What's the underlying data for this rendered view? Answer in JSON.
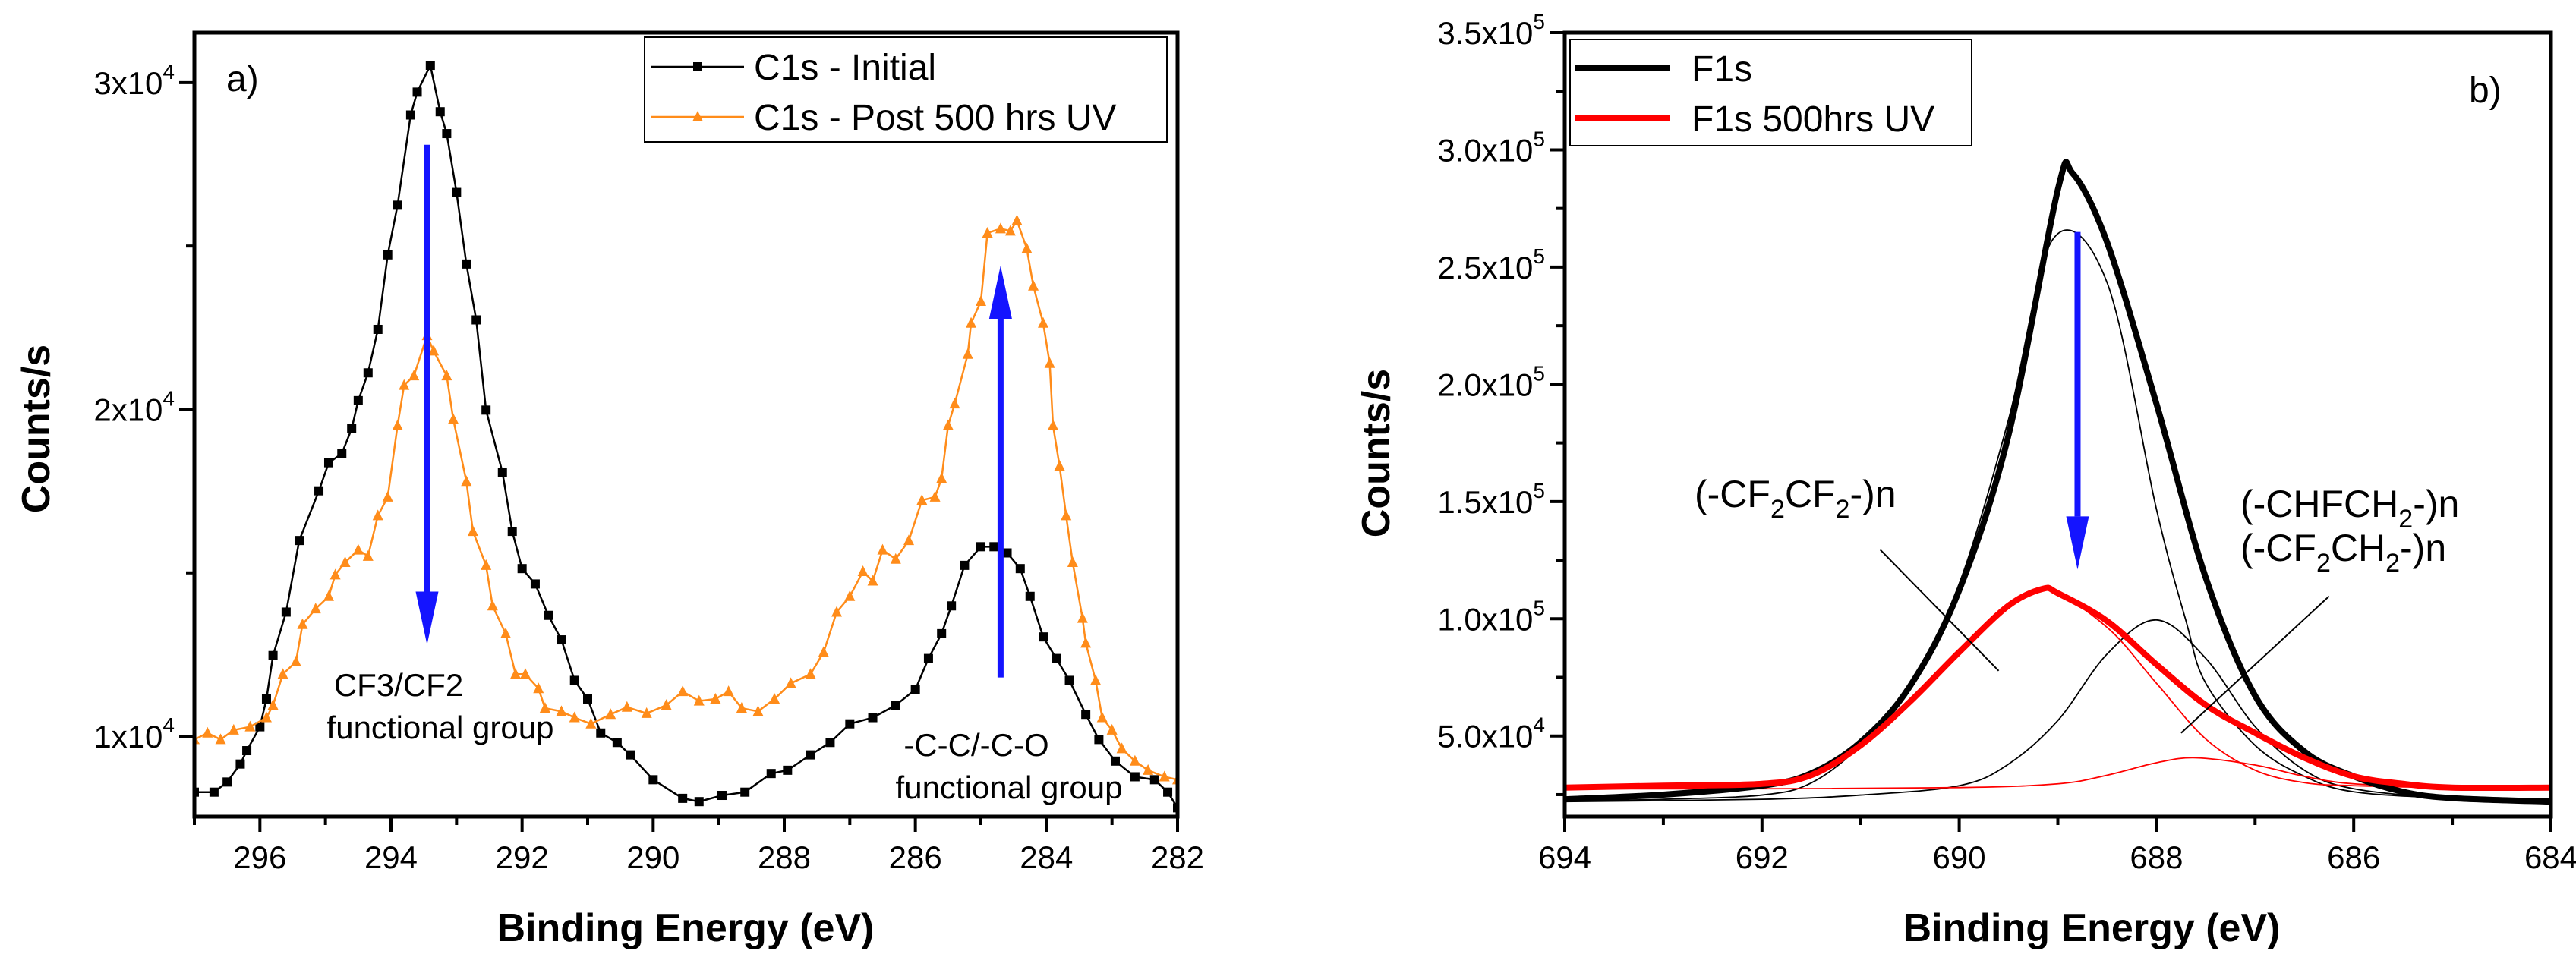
{
  "chart_data": [
    {
      "type": "line",
      "panel_label": "a)",
      "xlabel": "Binding Energy (eV)",
      "ylabel": "Counts/s",
      "xlim": [
        297,
        282
      ],
      "ylim": [
        7540,
        31530
      ],
      "xticks": [
        296,
        294,
        292,
        290,
        288,
        286,
        284,
        282
      ],
      "xticks_minor": [
        297,
        295,
        293,
        291,
        289,
        287,
        285,
        283
      ],
      "yticks": [
        {
          "value": 30000,
          "base": "3x10",
          "exp": "4"
        },
        {
          "value": 20000,
          "base": "2x10",
          "exp": "4"
        },
        {
          "value": 10000,
          "base": "1x10",
          "exp": "4"
        }
      ],
      "yticks_minor": [
        25000,
        15000
      ],
      "legend_position": "top-right",
      "annotations": [
        "CF3/CF2",
        "functional group",
        "-C-C/-C-O",
        "functional group"
      ],
      "series": [
        {
          "name": "C1s - Initial",
          "color": "#000000",
          "marker": "square",
          "x": [
            297,
            296.7,
            296.5,
            296.3,
            296.2,
            296,
            295.9,
            295.8,
            295.6,
            295.4,
            295.1,
            294.95,
            294.75,
            294.6,
            294.5,
            294.35,
            294.2,
            294.05,
            293.9,
            293.7,
            293.6,
            293.4,
            293.25,
            293.15,
            293.0,
            292.85,
            292.7,
            292.55,
            292.3,
            292.15,
            292,
            291.8,
            291.6,
            291.4,
            291.2,
            291.0,
            290.8,
            290.55,
            290.35,
            290,
            289.55,
            289.3,
            288.95,
            288.6,
            288.2,
            287.95,
            287.6,
            287.3,
            287,
            286.65,
            286.3,
            286,
            285.8,
            285.6,
            285.45,
            285.25,
            285,
            284.8,
            284.6,
            284.4,
            284.25,
            284.05,
            283.85,
            283.65,
            283.4,
            283.2,
            282.95,
            282.65,
            282.35,
            282.15,
            282
          ],
          "y": [
            8290,
            8290,
            8600,
            9150,
            9560,
            10290,
            11140,
            12470,
            13800,
            15990,
            17510,
            18370,
            18650,
            19410,
            20270,
            21120,
            22450,
            24730,
            26250,
            29010,
            29710,
            30530,
            29110,
            28440,
            26640,
            24450,
            22740,
            19980,
            18080,
            16270,
            15130,
            14660,
            13700,
            12950,
            11710,
            11140,
            10100,
            9810,
            9430,
            8670,
            8100,
            8000,
            8190,
            8290,
            8860,
            8960,
            9430,
            9810,
            10380,
            10570,
            10950,
            11430,
            12380,
            13140,
            13990,
            15230,
            15800,
            15800,
            15610,
            15130,
            14280,
            13040,
            12380,
            11710,
            10670,
            9900,
            9240,
            8760,
            8670,
            8290,
            7810
          ]
        },
        {
          "name": "C1s - Post 500 hrs UV",
          "color": "#FF8C1A",
          "marker": "triangle",
          "x": [
            297,
            296.8,
            296.6,
            296.4,
            296.15,
            295.9,
            295.8,
            295.65,
            295.45,
            295.35,
            295.15,
            294.95,
            294.85,
            294.7,
            294.5,
            294.35,
            294.2,
            294.05,
            293.9,
            293.8,
            293.65,
            293.45,
            293.35,
            293.15,
            293.05,
            292.85,
            292.75,
            292.55,
            292.45,
            292.25,
            292.1,
            291.95,
            291.75,
            291.65,
            291.4,
            291.2,
            290.95,
            290.65,
            290.4,
            290.1,
            289.8,
            289.55,
            289.3,
            289.05,
            288.85,
            288.65,
            288.4,
            288.15,
            287.9,
            287.6,
            287.4,
            287.2,
            287.0,
            286.8,
            286.65,
            286.5,
            286.3,
            286.1,
            285.9,
            285.7,
            285.6,
            285.5,
            285.4,
            285.2,
            285.15,
            285,
            284.9,
            284.7,
            284.55,
            284.45,
            284.3,
            284.2,
            284.05,
            283.95,
            283.9,
            283.8,
            283.7,
            283.6,
            283.45,
            283.4,
            283.25,
            283.15,
            283,
            282.85,
            282.65,
            282.45,
            282.2,
            282
          ],
          "y": [
            9900,
            10100,
            9900,
            10190,
            10290,
            10570,
            10950,
            11900,
            12280,
            13420,
            13900,
            14280,
            14940,
            15320,
            15700,
            15510,
            16750,
            17320,
            19510,
            20740,
            21030,
            22260,
            21790,
            21030,
            19700,
            17800,
            16270,
            15230,
            13990,
            13140,
            11900,
            11900,
            11460,
            10860,
            10760,
            10570,
            10380,
            10670,
            10890,
            10700,
            10950,
            11370,
            11080,
            11140,
            11370,
            10860,
            10760,
            11140,
            11620,
            11900,
            12570,
            13800,
            14280,
            15040,
            14750,
            15700,
            15420,
            15990,
            17220,
            17320,
            17890,
            19510,
            20170,
            21690,
            22640,
            23310,
            25400,
            25530,
            25460,
            25780,
            24920,
            23780,
            22640,
            21410,
            19510,
            18270,
            16750,
            15320,
            13610,
            12850,
            11710,
            10570,
            10190,
            9620,
            9240,
            8960,
            8760,
            8670
          ]
        }
      ]
    },
    {
      "type": "line",
      "panel_label": "b)",
      "xlabel": "Binding Energy (eV)",
      "ylabel": "Counts/s",
      "xlim": [
        694,
        684
      ],
      "ylim": [
        15600,
        350000
      ],
      "xticks": [
        694,
        692,
        690,
        688,
        686,
        684
      ],
      "xticks_minor": [
        693,
        691,
        689,
        687,
        685
      ],
      "yticks": [
        {
          "value": 50000,
          "base": "5.0x10",
          "exp": "4"
        },
        {
          "value": 100000,
          "base": "1.0x10",
          "exp": "5"
        },
        {
          "value": 150000,
          "base": "1.5x10",
          "exp": "5"
        },
        {
          "value": 200000,
          "base": "2.0x10",
          "exp": "5"
        },
        {
          "value": 250000,
          "base": "2.5x10",
          "exp": "5"
        },
        {
          "value": 300000,
          "base": "3.0x10",
          "exp": "5"
        },
        {
          "value": 350000,
          "base": "3.5x10",
          "exp": "5"
        }
      ],
      "yticks_minor": [
        25000,
        75000,
        125000,
        175000,
        225000,
        275000,
        325000
      ],
      "legend_position": "top-left",
      "annotations": [
        {
          "parts": [
            [
              "(-CF",
              ""
            ],
            [
              "2",
              "sub"
            ],
            [
              "CF",
              ""
            ],
            [
              "2",
              "sub"
            ],
            [
              "-)n",
              ""
            ]
          ]
        },
        {
          "parts": [
            [
              "(-CHFCH",
              ""
            ],
            [
              "2",
              "sub"
            ],
            [
              "-)n",
              ""
            ]
          ]
        },
        {
          "parts": [
            [
              "(-CF",
              ""
            ],
            [
              "2",
              "sub"
            ],
            [
              "CH",
              ""
            ],
            [
              "2",
              "sub"
            ],
            [
              "-)n",
              ""
            ]
          ]
        }
      ],
      "series": [
        {
          "name": "F1s",
          "color": "#000000",
          "width": "thick",
          "in_legend": true,
          "x": [
            694,
            693,
            692,
            691.5,
            691,
            690.5,
            690,
            689.5,
            689,
            688.85,
            688.5,
            688,
            687.5,
            687,
            686.5,
            686,
            685.5,
            685,
            684
          ],
          "y": [
            23000,
            25000,
            28800,
            34100,
            47400,
            71200,
            112200,
            178400,
            283000,
            290000,
            260500,
            191700,
            117500,
            67200,
            43400,
            32800,
            26200,
            23500,
            22000
          ]
        },
        {
          "name": "F1s 500hrs UV",
          "color": "#FF0000",
          "width": "thick",
          "in_legend": true,
          "x": [
            694,
            693,
            692,
            691.5,
            691,
            690.5,
            690,
            689.5,
            689.15,
            689,
            688.5,
            688,
            687.5,
            687,
            686.5,
            686,
            685.5,
            685,
            684
          ],
          "y": [
            28000,
            28800,
            29600,
            33300,
            46000,
            64600,
            85800,
            105600,
            112800,
            110900,
            99000,
            80500,
            63200,
            51300,
            40700,
            32800,
            29600,
            28000,
            28000
          ]
        },
        {
          "name": "F1s component (-CF2CF2-)n",
          "color": "#000000",
          "width": "thin",
          "in_legend": false,
          "x": [
            694,
            693,
            692,
            691.5,
            691,
            690.5,
            690,
            689.5,
            689.05,
            688.5,
            688,
            687.7,
            687.5,
            687,
            686.5,
            686,
            685,
            684
          ],
          "y": [
            22200,
            23000,
            24800,
            30000,
            46000,
            71200,
            114900,
            185000,
            261900,
            243300,
            146700,
            99000,
            72500,
            46000,
            32800,
            26200,
            23500,
            23000
          ]
        },
        {
          "name": "F1s component (-CHFCH2-)n / (-CF2CH2-)n",
          "color": "#000000",
          "width": "thin",
          "in_legend": false,
          "x": [
            694,
            692,
            691,
            690,
            689.5,
            689,
            688.5,
            688,
            687.5,
            687,
            686.5,
            686,
            685,
            684
          ],
          "y": [
            22000,
            23000,
            24800,
            28800,
            38000,
            56600,
            85000,
            99500,
            83100,
            54000,
            35400,
            27500,
            23500,
            23000
          ]
        },
        {
          "name": "UV component 1",
          "color": "#FF0000",
          "width": "thin",
          "in_legend": false,
          "x": [
            694,
            693,
            692,
            691.5,
            691,
            690.5,
            690,
            689.5,
            689.1,
            688.5,
            688,
            687.5,
            687,
            686.5,
            686,
            685,
            684
          ],
          "y": [
            28000,
            28800,
            29600,
            33300,
            46000,
            64600,
            85800,
            105600,
            112200,
            96300,
            72500,
            48700,
            35400,
            30100,
            28800,
            28000,
            28000
          ]
        },
        {
          "name": "UV component 2",
          "color": "#FF0000",
          "width": "thin",
          "in_legend": false,
          "x": [
            694,
            692,
            690,
            689,
            688.5,
            688,
            687.6,
            687,
            686.5,
            686,
            685,
            684
          ],
          "y": [
            27500,
            27500,
            28000,
            29600,
            33300,
            38600,
            40700,
            37600,
            32800,
            29600,
            28000,
            28000
          ]
        }
      ]
    }
  ]
}
